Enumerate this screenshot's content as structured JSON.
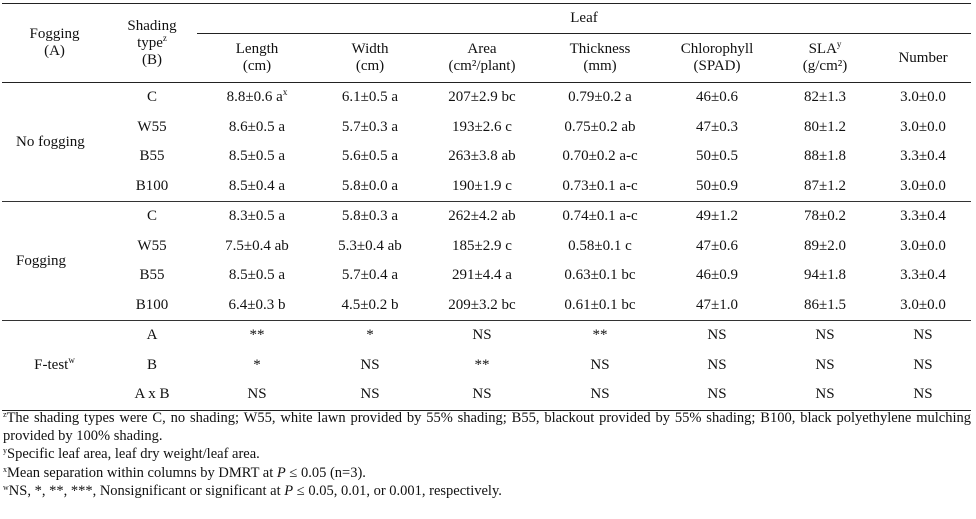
{
  "header": {
    "fogging_a": "Fogging",
    "fogging_a2": "(A)",
    "shading": "Shading",
    "shading2": "type",
    "shading_sup": "z",
    "shading3": "(B)",
    "leaf": "Leaf",
    "cols": [
      {
        "l1": "Length",
        "l2": "(cm)"
      },
      {
        "l1": "Width",
        "l2": "(cm)"
      },
      {
        "l1": "Area",
        "l2": "(cm²/plant)"
      },
      {
        "l1": "Thickness",
        "l2": "(mm)"
      },
      {
        "l1": "Chlorophyll",
        "l2": "(SPAD)"
      },
      {
        "l1": "SLA",
        "l1sup": "y",
        "l2": "(g/cm²)"
      },
      {
        "l1": "Number",
        "l2": ""
      }
    ]
  },
  "groups": [
    {
      "label": "No fogging",
      "rows": [
        {
          "type": "C",
          "length": "8.8±0.6 a",
          "length_sup": "x",
          "width": "6.1±0.5 a",
          "area": "207±2.9 bc",
          "thickness": "0.79±0.2 a",
          "chlorophyll": "46±0.6",
          "sla": "82±1.3",
          "number": "3.0±0.0"
        },
        {
          "type": "W55",
          "length": "8.6±0.5 a",
          "length_sup": "",
          "width": "5.7±0.3 a",
          "area": "193±2.6 c",
          "thickness": "0.75±0.2 ab",
          "chlorophyll": "47±0.3",
          "sla": "80±1.2",
          "number": "3.0±0.0"
        },
        {
          "type": "B55",
          "length": "8.5±0.5 a",
          "length_sup": "",
          "width": "5.6±0.5 a",
          "area": "263±3.8 ab",
          "thickness": "0.70±0.2 a-c",
          "chlorophyll": "50±0.5",
          "sla": "88±1.8",
          "number": "3.3±0.4"
        },
        {
          "type": "B100",
          "length": "8.5±0.4 a",
          "length_sup": "",
          "width": "5.8±0.0 a",
          "area": "190±1.9 c",
          "thickness": "0.73±0.1 a-c",
          "chlorophyll": "50±0.9",
          "sla": "87±1.2",
          "number": "3.0±0.0"
        }
      ]
    },
    {
      "label": "Fogging",
      "rows": [
        {
          "type": "C",
          "length": "8.3±0.5 a",
          "length_sup": "",
          "width": "5.8±0.3 a",
          "area": "262±4.2 ab",
          "thickness": "0.74±0.1 a-c",
          "chlorophyll": "49±1.2",
          "sla": "78±0.2",
          "number": "3.3±0.4"
        },
        {
          "type": "W55",
          "length": "7.5±0.4 ab",
          "length_sup": "",
          "width": "5.3±0.4 ab",
          "area": "185±2.9 c",
          "thickness": "0.58±0.1 c",
          "chlorophyll": "47±0.6",
          "sla": "89±2.0",
          "number": "3.0±0.0"
        },
        {
          "type": "B55",
          "length": "8.5±0.5 a",
          "length_sup": "",
          "width": "5.7±0.4 a",
          "area": "291±4.4 a",
          "thickness": "0.63±0.1 bc",
          "chlorophyll": "46±0.9",
          "sla": "94±1.8",
          "number": "3.3±0.4"
        },
        {
          "type": "B100",
          "length": "6.4±0.3 b",
          "length_sup": "",
          "width": "4.5±0.2 b",
          "area": "209±3.2 bc",
          "thickness": "0.61±0.1 bc",
          "chlorophyll": "47±1.0",
          "sla": "86±1.5",
          "number": "3.0±0.0"
        }
      ]
    },
    {
      "label": "F-test",
      "label_sup": "w",
      "rows": [
        {
          "type": "A",
          "length": "**",
          "length_sup": "",
          "width": "*",
          "area": "NS",
          "thickness": "**",
          "chlorophyll": "NS",
          "sla": "NS",
          "number": "NS"
        },
        {
          "type": "B",
          "length": "*",
          "length_sup": "",
          "width": "NS",
          "area": "**",
          "thickness": "NS",
          "chlorophyll": "NS",
          "sla": "NS",
          "number": "NS"
        },
        {
          "type": "A x B",
          "length": "NS",
          "length_sup": "",
          "width": "NS",
          "area": "NS",
          "thickness": "NS",
          "chlorophyll": "NS",
          "sla": "NS",
          "number": "NS"
        }
      ]
    }
  ],
  "footnotes": {
    "z_sup": "z",
    "z": "The shading types were C, no shading; W55, white lawn provided by 55% shading; B55, blackout provided by 55% shading; B100, black polyethylene mulching provided by 100% shading.",
    "y_sup": "y",
    "y": "Specific leaf area, leaf dry weight/leaf area.",
    "x_sup": "x",
    "x_pre": "Mean separation within columns by DMRT at ",
    "x_p": "P",
    "x_post": " ≤ 0.05 (n=3).",
    "w_sup": "w",
    "w_pre": "NS, *, **, ***, Nonsignificant or significant at ",
    "w_p": "P",
    "w_post": " ≤ 0.05, 0.01, or 0.001, respectively."
  }
}
